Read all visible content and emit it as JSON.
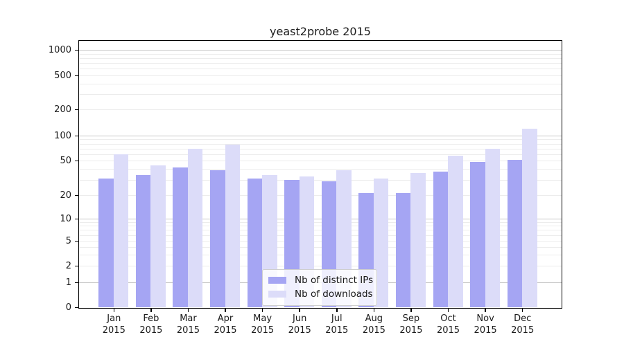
{
  "title": "yeast2probe 2015",
  "chart_data": {
    "type": "bar",
    "title": "yeast2probe 2015",
    "categories": [
      "Jan 2015",
      "Feb 2015",
      "Mar 2015",
      "Apr 2015",
      "May 2015",
      "Jun 2015",
      "Jul 2015",
      "Aug 2015",
      "Sep 2015",
      "Oct 2015",
      "Nov 2015",
      "Dec 2015"
    ],
    "series": [
      {
        "name": "Nb of distinct IPs",
        "color": "#a5a5f3",
        "values": [
          31,
          34,
          42,
          39,
          31,
          30,
          29,
          21,
          21,
          37,
          48,
          51
        ]
      },
      {
        "name": "Nb of downloads",
        "color": "#dcdcf9",
        "values": [
          60,
          44,
          70,
          78,
          34,
          33,
          39,
          31,
          36,
          57,
          70,
          120
        ]
      }
    ],
    "yticks": [
      0,
      1,
      2,
      5,
      10,
      20,
      50,
      100,
      200,
      500,
      1000
    ],
    "ylim": [
      0,
      1400
    ],
    "yscale": "log-like-with-zero",
    "grid": "on",
    "legend_position": "bottom-center-inside"
  }
}
